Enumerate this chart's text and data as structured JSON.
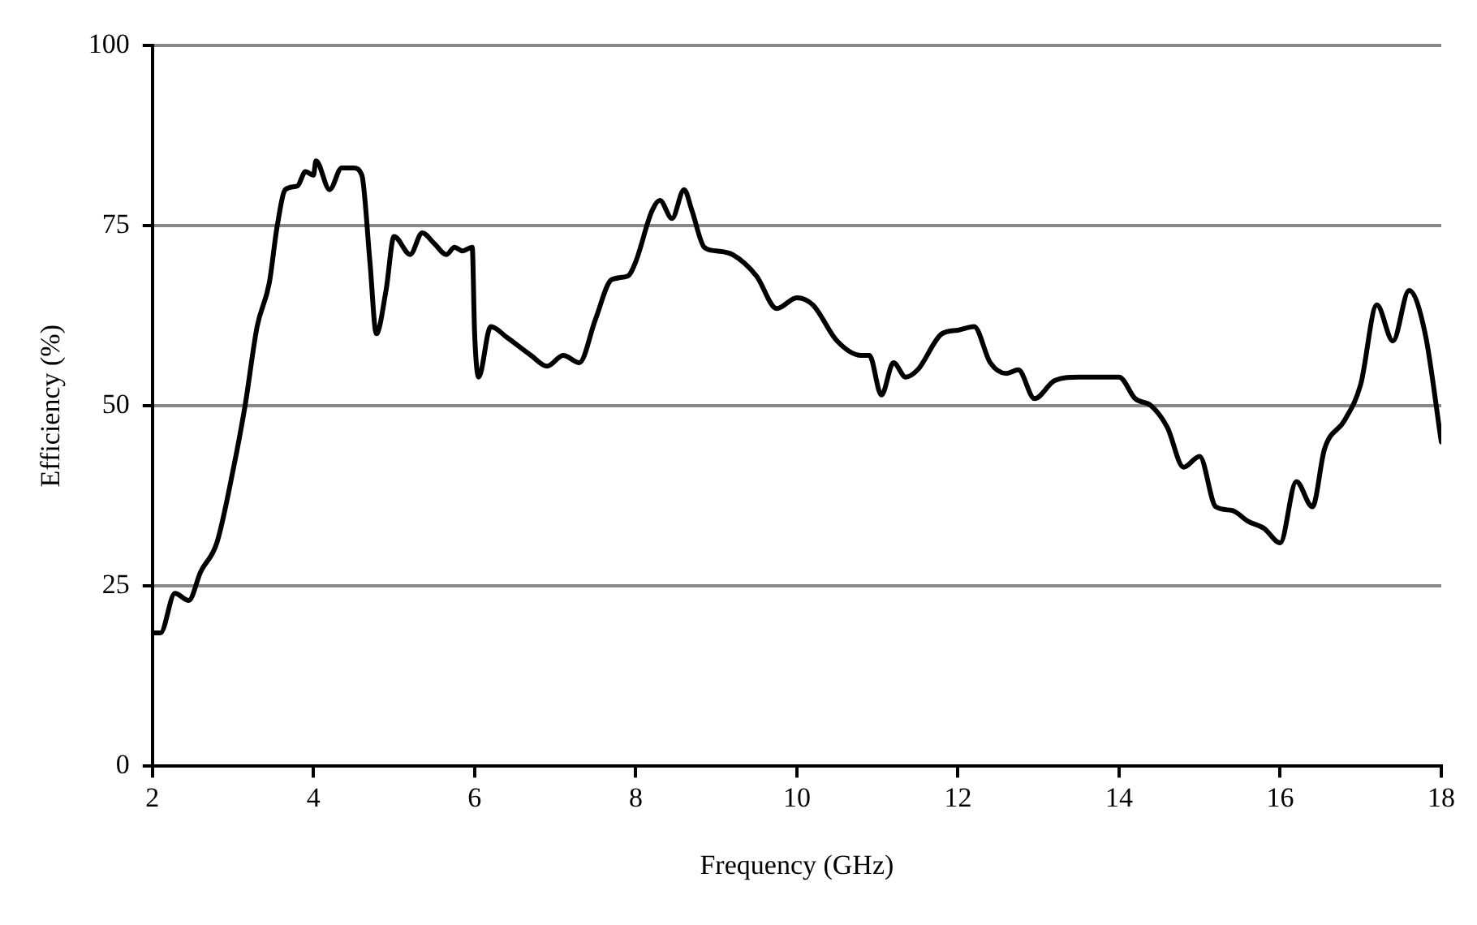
{
  "chart_data": {
    "type": "line",
    "xlabel": "Frequency (GHz)",
    "ylabel": "Efficiency (%)",
    "xlim": [
      2,
      18
    ],
    "xticks": [
      2,
      4,
      6,
      8,
      10,
      12,
      14,
      16,
      18
    ],
    "ylim": [
      0,
      100
    ],
    "yticks": [
      0,
      25,
      50,
      75,
      100
    ],
    "grid": "y",
    "legend": false,
    "marker": "none",
    "line_style": "solid",
    "series": [
      {
        "color": "#000000",
        "x": [
          2.0,
          2.1,
          2.28,
          2.45,
          2.6,
          2.8,
          3.0,
          3.15,
          3.3,
          3.45,
          3.55,
          3.65,
          3.8,
          3.9,
          4.0,
          4.03,
          4.2,
          4.35,
          4.5,
          4.6,
          4.7,
          4.78,
          4.9,
          5.0,
          5.2,
          5.35,
          5.5,
          5.65,
          5.75,
          5.85,
          5.97,
          6.0,
          6.05,
          6.2,
          6.4,
          6.7,
          6.9,
          7.1,
          7.3,
          7.5,
          7.7,
          7.9,
          8.0,
          8.2,
          8.3,
          8.45,
          8.6,
          8.7,
          8.85,
          9.0,
          9.2,
          9.5,
          9.75,
          10.0,
          10.2,
          10.5,
          10.8,
          10.9,
          11.05,
          11.2,
          11.35,
          11.5,
          11.8,
          12.0,
          12.2,
          12.4,
          12.6,
          12.75,
          12.95,
          13.2,
          13.5,
          14.0,
          14.2,
          14.4,
          14.6,
          14.8,
          15.0,
          15.2,
          15.4,
          15.6,
          15.8,
          16.0,
          16.2,
          16.4,
          16.55,
          16.8,
          17.0,
          17.2,
          17.4,
          17.6,
          17.8,
          18.0
        ],
        "values": [
          18.5,
          18.5,
          24,
          23,
          27,
          31,
          41,
          50,
          61,
          67,
          75,
          80,
          80.5,
          82.5,
          82,
          84,
          80,
          83,
          83,
          82,
          70,
          60,
          66,
          73.5,
          71,
          74,
          72.5,
          71,
          72,
          71.5,
          72,
          60,
          54,
          61,
          59.5,
          57,
          55.5,
          57,
          56,
          62,
          67.5,
          68,
          70,
          77,
          78.5,
          76,
          80,
          77,
          72,
          71.5,
          71,
          68,
          63.5,
          65,
          64,
          59,
          57,
          57,
          51.5,
          56,
          54,
          55,
          60,
          60.5,
          61,
          56,
          54.5,
          55,
          51,
          53.5,
          54,
          54,
          51,
          50,
          47,
          41.5,
          43,
          36,
          35.5,
          34,
          33,
          31,
          39.5,
          36,
          44,
          48,
          53,
          64,
          59,
          66,
          60,
          45
        ]
      }
    ]
  }
}
